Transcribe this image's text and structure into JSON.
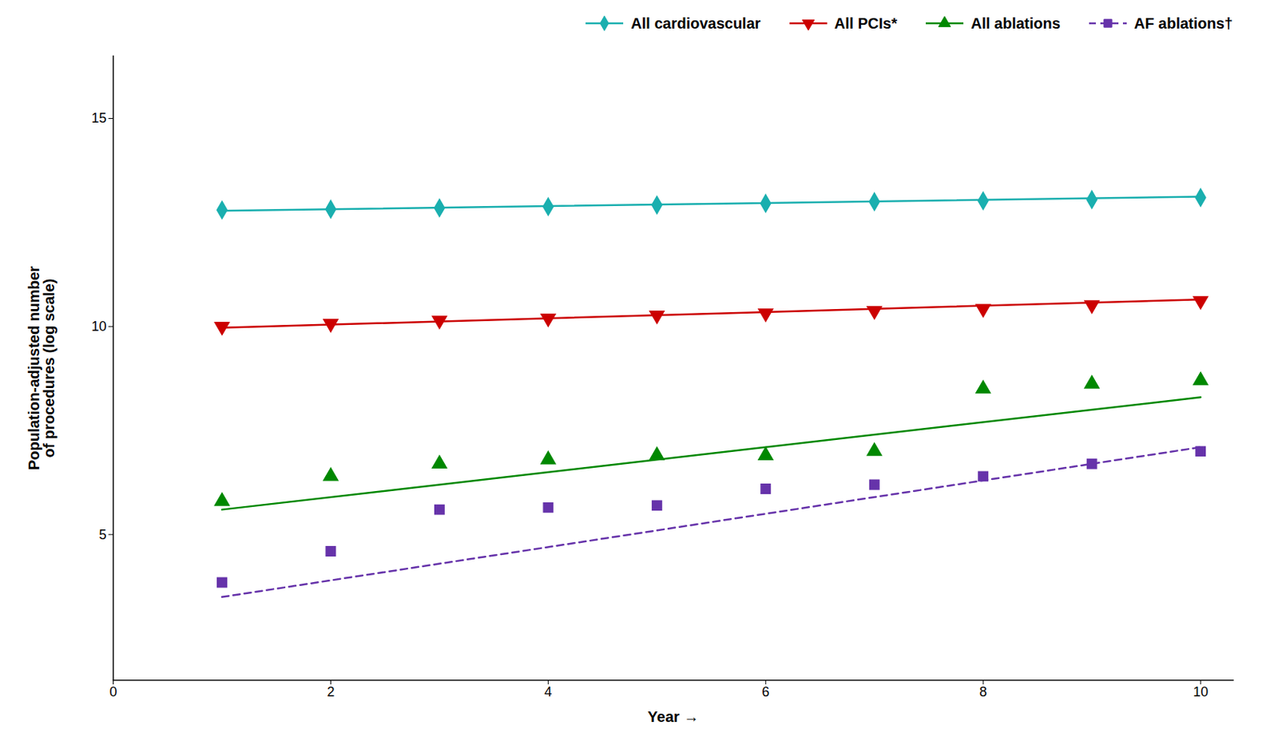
{
  "chart_data": {
    "type": "scatter",
    "xlabel": "Year",
    "ylabel": "Population-adjusted number\nof procedures (log scale)",
    "x": [
      1,
      2,
      3,
      4,
      5,
      6,
      7,
      8,
      9,
      10
    ],
    "series": [
      {
        "name": "All cardiovascular",
        "color": "#1AAFAF",
        "marker": "diamond",
        "line_style": "solid",
        "values": [
          12.8,
          12.82,
          12.85,
          12.88,
          12.92,
          12.96,
          13.0,
          13.02,
          13.05,
          13.1
        ],
        "trend_x": [
          1,
          10
        ],
        "trend_y": [
          12.78,
          13.12
        ]
      },
      {
        "name": "All PCIs*",
        "color": "#CC0000",
        "marker": "triangle-down",
        "line_style": "solid",
        "values": [
          10.0,
          10.07,
          10.15,
          10.2,
          10.27,
          10.32,
          10.38,
          10.43,
          10.52,
          10.62
        ],
        "trend_x": [
          1,
          10
        ],
        "trend_y": [
          9.97,
          10.65
        ]
      },
      {
        "name": "All ablations",
        "color": "#008800",
        "marker": "triangle-up",
        "line_style": "solid",
        "values": [
          5.8,
          6.4,
          6.7,
          6.8,
          6.9,
          6.9,
          7.0,
          8.5,
          8.62,
          8.7
        ],
        "trend_x": [
          1,
          10
        ],
        "trend_y": [
          5.6,
          8.3
        ]
      },
      {
        "name": "AF ablations†",
        "color": "#6633AA",
        "marker": "square",
        "line_style": "dashed",
        "values": [
          3.85,
          4.6,
          5.6,
          5.65,
          5.7,
          6.1,
          6.2,
          6.4,
          6.7,
          7.0
        ],
        "trend_x": [
          1,
          10
        ],
        "trend_y": [
          3.5,
          7.1
        ]
      }
    ],
    "xlim": [
      0,
      10.3
    ],
    "xticks": [
      0,
      2,
      4,
      6,
      8,
      10
    ],
    "ylim": [
      1.5,
      16.5
    ],
    "yticks": [
      5,
      10,
      15
    ],
    "grid": false,
    "legend": "upper right"
  }
}
